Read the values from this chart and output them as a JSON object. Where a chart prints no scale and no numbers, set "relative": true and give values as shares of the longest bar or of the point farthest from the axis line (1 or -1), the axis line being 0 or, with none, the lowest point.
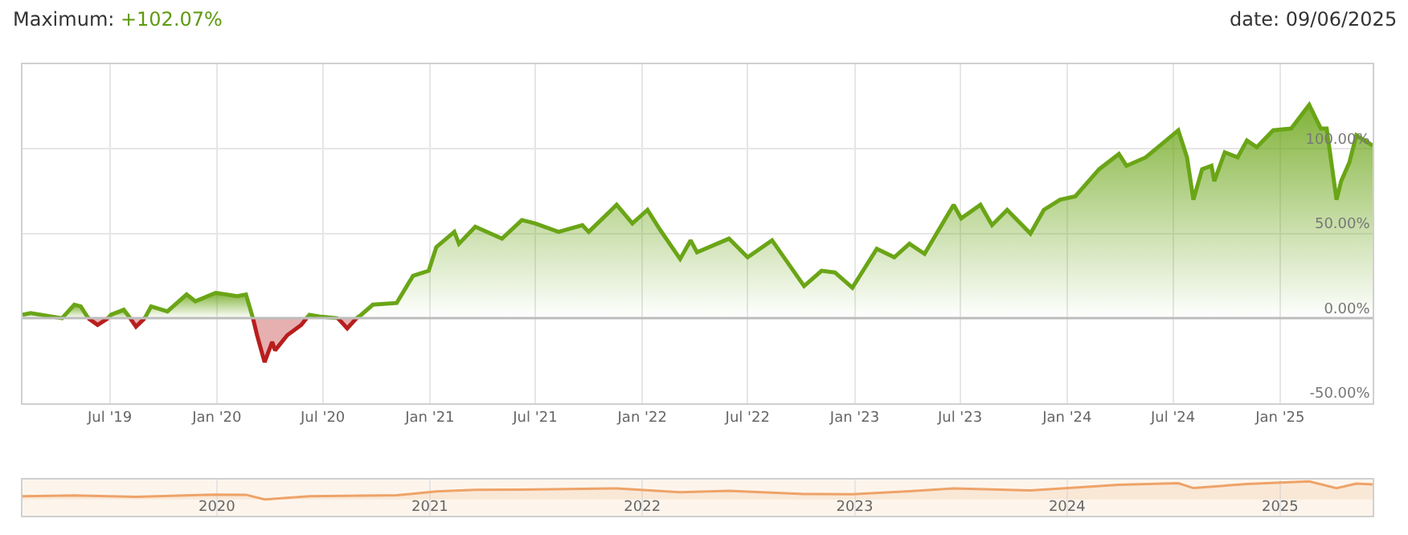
{
  "chart_data": [
    {
      "type": "area",
      "title": "Maximum: +102.07%",
      "subtitle": "date: 09/06/2025",
      "x": [
        "2019-02-01",
        "2019-02-15",
        "2019-04-10",
        "2019-05-01",
        "2019-05-12",
        "2019-05-25",
        "2019-06-10",
        "2019-06-28",
        "2019-07-03",
        "2019-07-25",
        "2019-08-05",
        "2019-08-15",
        "2019-08-30",
        "2019-09-10",
        "2019-10-08",
        "2019-11-10",
        "2019-11-25",
        "2019-12-30",
        "2020-02-05",
        "2020-02-20",
        "2020-03-03",
        "2020-03-10",
        "2020-03-23",
        "2020-04-05",
        "2020-04-10",
        "2020-05-01",
        "2020-05-25",
        "2020-06-03",
        "2020-06-08",
        "2020-06-25",
        "2020-07-27",
        "2020-08-12",
        "2020-08-28",
        "2020-09-05",
        "2020-09-25",
        "2020-11-05",
        "2020-12-03",
        "2020-12-30",
        "2021-01-12",
        "2021-02-12",
        "2021-02-20",
        "2021-03-20",
        "2021-05-05",
        "2021-06-08",
        "2021-07-01",
        "2021-08-10",
        "2021-09-20",
        "2021-10-01",
        "2021-11-18",
        "2021-12-15",
        "2022-01-10",
        "2022-02-01",
        "2022-03-07",
        "2022-03-25",
        "2022-04-05",
        "2022-05-30",
        "2022-07-01",
        "2022-08-12",
        "2022-10-06",
        "2022-11-05",
        "2022-11-28",
        "2022-12-28",
        "2023-02-08",
        "2023-03-10",
        "2023-04-05",
        "2023-05-01",
        "2023-06-20",
        "2023-07-03",
        "2023-08-05",
        "2023-08-25",
        "2023-09-20",
        "2023-10-30",
        "2023-11-22",
        "2023-12-20",
        "2024-01-15",
        "2024-02-25",
        "2024-03-30",
        "2024-04-12",
        "2024-05-15",
        "2024-06-12",
        "2024-07-10",
        "2024-07-25",
        "2024-08-05",
        "2024-08-20",
        "2024-09-05",
        "2024-09-10",
        "2024-09-28",
        "2024-10-20",
        "2024-11-05",
        "2024-11-22",
        "2024-12-20",
        "2025-01-20",
        "2025-02-20",
        "2025-03-12",
        "2025-03-22",
        "2025-04-08",
        "2025-04-16",
        "2025-04-30",
        "2025-05-12",
        "2025-06-09"
      ],
      "series": [
        {
          "color": "#6aa516",
          "values": [
            2,
            3,
            0,
            8,
            7,
            0,
            null,
            0,
            2,
            5,
            0,
            null,
            0,
            7,
            4,
            14,
            10,
            15,
            13,
            14,
            0,
            null,
            null,
            null,
            null,
            null,
            null,
            0,
            2,
            1,
            0,
            null,
            0,
            2,
            8,
            9,
            25,
            28,
            42,
            51,
            44,
            54,
            47,
            58,
            56,
            51,
            55,
            51,
            67,
            56,
            64,
            52,
            35,
            46,
            39,
            47,
            36,
            46,
            19,
            28,
            27,
            18,
            41,
            36,
            44,
            38,
            67,
            59,
            67,
            55,
            64,
            50,
            64,
            70,
            72,
            88,
            97,
            90,
            95,
            103,
            111,
            95,
            70,
            88,
            90,
            81,
            98,
            95,
            105,
            101,
            111,
            112,
            126,
            112,
            112,
            70,
            81,
            92,
            108,
            102
          ]
        },
        {
          "color": "#b81e1e",
          "values": [
            null,
            null,
            null,
            null,
            null,
            0,
            -4,
            0,
            null,
            null,
            0,
            -5,
            0,
            null,
            null,
            null,
            null,
            null,
            null,
            null,
            0,
            -10,
            -26,
            -14,
            -19,
            -10,
            -4,
            0,
            null,
            null,
            0,
            -6,
            0,
            null,
            null,
            null,
            null,
            null,
            null,
            null,
            null,
            null,
            null,
            null,
            null,
            null,
            null,
            null,
            null,
            null,
            null,
            null,
            null,
            null,
            null,
            null,
            null,
            null,
            null,
            null,
            null,
            null,
            null,
            null,
            null,
            null,
            null,
            null,
            null,
            null,
            null,
            null,
            null,
            null,
            null,
            null,
            null,
            null,
            null,
            null,
            null,
            null,
            null,
            null,
            null,
            null,
            null,
            null,
            null,
            null,
            null,
            null,
            null,
            null,
            null,
            null,
            null,
            null,
            null,
            null
          ]
        }
      ],
      "xlim": [
        "2019-02-01",
        "2025-06-09"
      ],
      "xticks": [
        {
          "value": "2019-07-01",
          "label": "Jul '19"
        },
        {
          "value": "2020-01-01",
          "label": "Jan '20"
        },
        {
          "value": "2020-07-01",
          "label": "Jul '20"
        },
        {
          "value": "2021-01-01",
          "label": "Jan '21"
        },
        {
          "value": "2021-07-01",
          "label": "Jul '21"
        },
        {
          "value": "2022-01-01",
          "label": "Jan '22"
        },
        {
          "value": "2022-07-01",
          "label": "Jul '22"
        },
        {
          "value": "2023-01-01",
          "label": "Jan '23"
        },
        {
          "value": "2023-07-01",
          "label": "Jul '23"
        },
        {
          "value": "2024-01-01",
          "label": "Jan '24"
        },
        {
          "value": "2024-07-01",
          "label": "Jul '24"
        },
        {
          "value": "2025-01-01",
          "label": "Jan '25"
        }
      ],
      "ylim": [
        -50,
        150
      ],
      "yticks": [
        {
          "value": -50,
          "label": "-50.00%"
        },
        {
          "value": 0,
          "label": "0.00%"
        },
        {
          "value": 50,
          "label": "50.00%"
        },
        {
          "value": 100,
          "label": "100.00%"
        },
        {
          "value": 150,
          "label": null
        }
      ],
      "grid": true
    },
    {
      "type": "line",
      "relative": true,
      "tick_labels": "x",
      "grid": "x",
      "x": [
        "2019-02-01",
        "2019-05-01",
        "2019-08-15",
        "2019-12-30",
        "2020-02-20",
        "2020-03-23",
        "2020-06-08",
        "2020-11-05",
        "2021-01-12",
        "2021-03-20",
        "2021-06-08",
        "2021-11-18",
        "2022-03-07",
        "2022-05-30",
        "2022-10-06",
        "2022-12-28",
        "2023-04-05",
        "2023-06-20",
        "2023-10-30",
        "2024-03-30",
        "2024-07-10",
        "2024-08-05",
        "2024-11-05",
        "2025-02-20",
        "2025-04-08",
        "2025-05-12",
        "2025-06-09"
      ],
      "series": [
        {
          "color": "#eea368",
          "values": [
            0.18,
            0.22,
            0.14,
            0.27,
            0.26,
            0,
            0.18,
            0.23,
            0.45,
            0.53,
            0.55,
            0.61,
            0.4,
            0.48,
            0.3,
            0.29,
            0.46,
            0.61,
            0.5,
            0.81,
            0.9,
            0.63,
            0.86,
            1,
            0.63,
            0.88,
            0.84
          ]
        }
      ],
      "xlim": [
        "2019-02-01",
        "2025-06-09"
      ],
      "xticks": [
        "2020",
        "2021",
        "2022",
        "2023",
        "2024",
        "2025"
      ]
    }
  ]
}
